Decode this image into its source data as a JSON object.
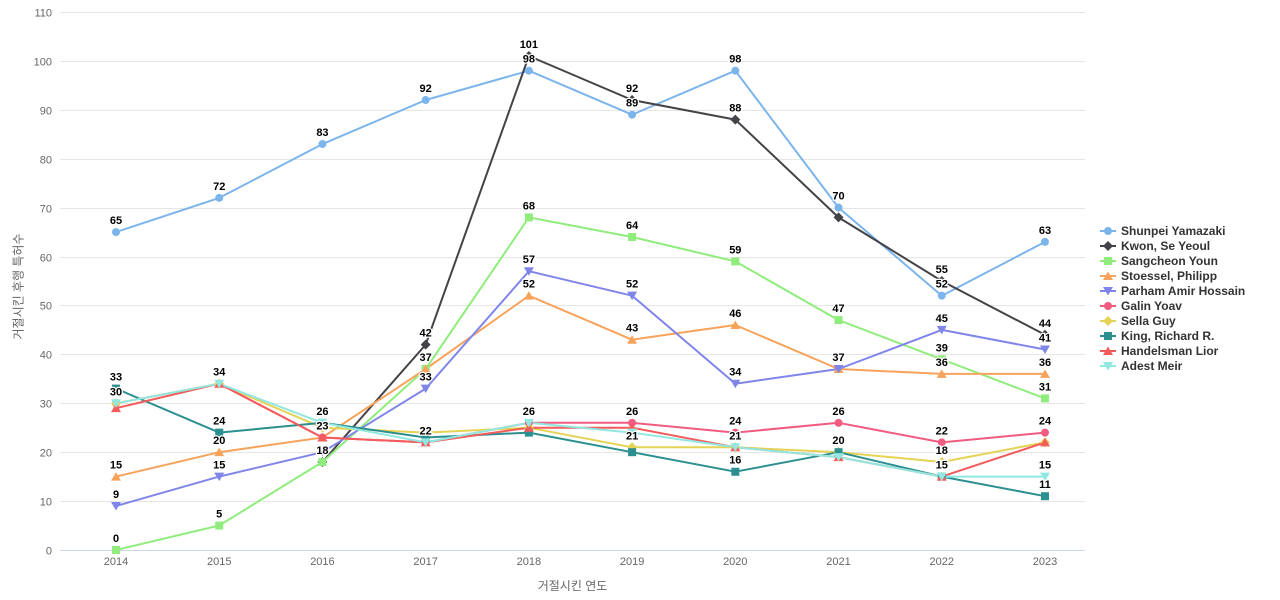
{
  "chart_data": {
    "type": "line",
    "title": "",
    "xlabel": "거절시킨 연도",
    "ylabel": "거절시킨 후행 특허수",
    "categories": [
      "2014",
      "2015",
      "2016",
      "2017",
      "2018",
      "2019",
      "2020",
      "2021",
      "2022",
      "2023"
    ],
    "y_axis": {
      "min": 0,
      "max": 110,
      "step": 10
    },
    "grid": "horizontal",
    "legend_position": "right",
    "colors": {
      "gridline": "#e6e6e6",
      "axis_line": "#ccd6eb",
      "tick_label": "#666666",
      "legend_text": "#333333",
      "data_label": "#000000"
    },
    "series": [
      {
        "name": "Shunpei Yamazaki",
        "color": "#7cb5ec",
        "marker": "circle",
        "values": [
          65,
          72,
          83,
          92,
          98,
          89,
          98,
          70,
          52,
          63
        ]
      },
      {
        "name": "Kwon, Se Yeoul",
        "color": "#434348",
        "marker": "diamond",
        "values": [
          null,
          null,
          18,
          42,
          101,
          92,
          88,
          68,
          55,
          44
        ]
      },
      {
        "name": "Sangcheon Youn",
        "color": "#90ed7d",
        "marker": "square",
        "values": [
          0,
          5,
          18,
          37,
          68,
          64,
          59,
          47,
          39,
          31
        ]
      },
      {
        "name": "Stoessel, Philipp",
        "color": "#f7a35c",
        "marker": "triangle",
        "values": [
          15,
          20,
          23,
          37,
          52,
          43,
          46,
          37,
          36,
          36
        ]
      },
      {
        "name": "Parham Amir Hossain",
        "color": "#8085e9",
        "marker": "triangle-down",
        "values": [
          9,
          15,
          20,
          33,
          57,
          52,
          34,
          37,
          45,
          41
        ]
      },
      {
        "name": "Galin Yoav",
        "color": "#f15c80",
        "marker": "circle",
        "values": [
          30,
          34,
          23,
          22,
          26,
          26,
          24,
          26,
          22,
          24
        ]
      },
      {
        "name": "Sella Guy",
        "color": "#e4d354",
        "marker": "diamond",
        "values": [
          30,
          34,
          25,
          24,
          25,
          21,
          21,
          20,
          18,
          22
        ]
      },
      {
        "name": "King, Richard R.",
        "color": "#2b908f",
        "marker": "square",
        "values": [
          33,
          24,
          26,
          23,
          24,
          20,
          16,
          20,
          15,
          11
        ]
      },
      {
        "name": "Handelsman Lior",
        "color": "#f45b5b",
        "marker": "triangle",
        "values": [
          29,
          34,
          23,
          22,
          25,
          25,
          21,
          19,
          15,
          22
        ]
      },
      {
        "name": "Adest Meir",
        "color": "#91e8e1",
        "marker": "triangle-down",
        "values": [
          30,
          34,
          26,
          22,
          26,
          24,
          21,
          19,
          15,
          15
        ]
      }
    ]
  }
}
